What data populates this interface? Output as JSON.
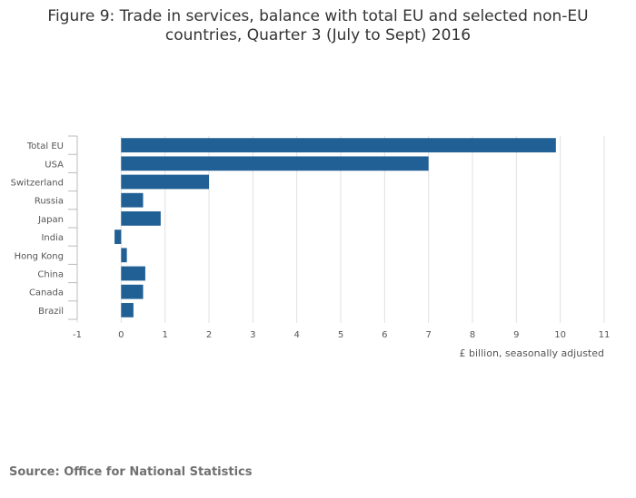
{
  "title_lines": [
    "Figure 9: Trade in services, balance with total EU and selected non-EU",
    "countries, Quarter 3 (July to Sept) 2016"
  ],
  "source": "Source: Office for National Statistics",
  "colors": {
    "bar": "#206095",
    "grid": "#e0e0e0",
    "axis": "#bbbbbb",
    "text": "#555555"
  },
  "chart_data": {
    "type": "bar",
    "orientation": "horizontal",
    "title": "Figure 9: Trade in services, balance with total EU and selected non-EU countries, Quarter 3 (July to Sept) 2016",
    "categories": [
      "Total EU",
      "USA",
      "Switzerland",
      "Russia",
      "Japan",
      "India",
      "Hong Kong",
      "China",
      "Canada",
      "Brazil"
    ],
    "values": [
      9.9,
      7.0,
      2.0,
      0.5,
      0.9,
      -0.15,
      0.13,
      0.55,
      0.5,
      0.28
    ],
    "xlim": [
      -1,
      11
    ],
    "xticks": [
      "-1",
      "0",
      "1",
      "2",
      "3",
      "4",
      "5",
      "6",
      "7",
      "8",
      "9",
      "10",
      "11"
    ],
    "xlabel": "£ billion, seasonally adjusted",
    "ylabel": "",
    "grid": true
  }
}
